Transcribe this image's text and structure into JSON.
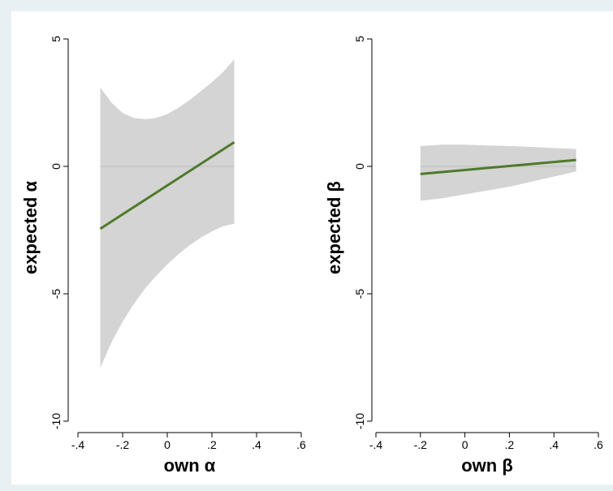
{
  "chart_data": [
    {
      "type": "line",
      "xlabel": "own α",
      "ylabel": "expected α",
      "xlim": [
        -0.4,
        0.6
      ],
      "ylim": [
        -10,
        5
      ],
      "xticks": [
        -0.4,
        -0.2,
        0,
        0.2,
        0.4,
        0.6
      ],
      "xtick_labels": [
        "-.4",
        "-.2",
        "0",
        ".2",
        ".4",
        ".6"
      ],
      "yticks": [
        5,
        0,
        -5,
        -10
      ],
      "ytick_labels": [
        "5",
        "0",
        "-5",
        "-10"
      ],
      "reference_line_y": 0,
      "series": [
        {
          "kind": "fitted_line",
          "color": "#4e7a2b",
          "x": [
            -0.3,
            0.3
          ],
          "y": [
            -2.45,
            0.95
          ]
        },
        {
          "kind": "confidence_band",
          "color": "#d4d4d4",
          "x": [
            -0.3,
            -0.25,
            -0.2,
            -0.15,
            -0.1,
            -0.05,
            0,
            0.05,
            0.1,
            0.15,
            0.2,
            0.25,
            0.3
          ],
          "upper": [
            3.1,
            2.5,
            2.1,
            1.9,
            1.85,
            1.9,
            2.05,
            2.3,
            2.6,
            2.95,
            3.3,
            3.7,
            4.2
          ],
          "lower": [
            -7.9,
            -6.9,
            -6.1,
            -5.4,
            -4.8,
            -4.3,
            -3.85,
            -3.45,
            -3.1,
            -2.8,
            -2.55,
            -2.35,
            -2.25
          ]
        }
      ]
    },
    {
      "type": "line",
      "xlabel": "own β",
      "ylabel": "expected β",
      "xlim": [
        -0.4,
        0.6
      ],
      "ylim": [
        -10,
        5
      ],
      "xticks": [
        -0.4,
        -0.2,
        0,
        0.2,
        0.4,
        0.6
      ],
      "xtick_labels": [
        "-.4",
        "-.2",
        "0",
        ".2",
        ".4",
        ".6"
      ],
      "yticks": [
        5,
        0,
        -5,
        -10
      ],
      "ytick_labels": [
        "5",
        "0",
        "-5",
        "-10"
      ],
      "reference_line_y": 0,
      "series": [
        {
          "kind": "fitted_line",
          "color": "#4e7a2b",
          "x": [
            -0.2,
            0.5
          ],
          "y": [
            -0.3,
            0.25
          ]
        },
        {
          "kind": "confidence_band",
          "color": "#d4d4d4",
          "x": [
            -0.2,
            -0.1,
            0,
            0.1,
            0.2,
            0.3,
            0.4,
            0.5
          ],
          "upper": [
            0.8,
            0.85,
            0.85,
            0.82,
            0.8,
            0.76,
            0.72,
            0.68
          ],
          "lower": [
            -1.35,
            -1.25,
            -1.1,
            -0.95,
            -0.8,
            -0.6,
            -0.4,
            -0.2
          ]
        }
      ]
    }
  ]
}
